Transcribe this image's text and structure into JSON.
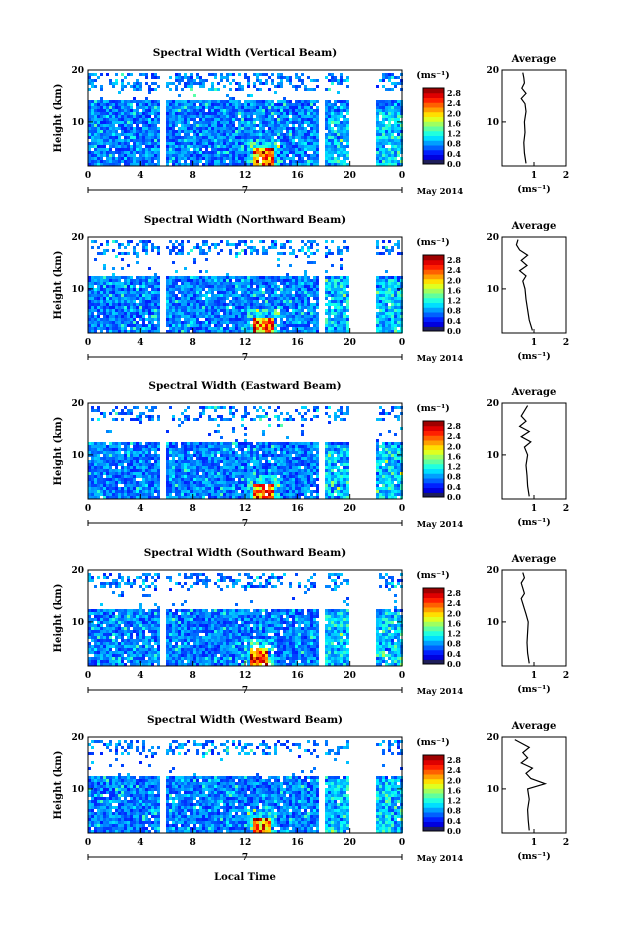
{
  "figure": {
    "date_label": "May 2014",
    "day_label": "7",
    "bottom_xlabel": "Local Time"
  },
  "chart_data": [
    {
      "type": "heatmap",
      "title": "Spectral Width (Vertical Beam)",
      "ylabel": "Height (km)",
      "xlabel": "",
      "x_ticks": [
        "0",
        "4",
        "8",
        "12",
        "16",
        "20",
        "0"
      ],
      "y_ticks": [
        "20",
        "10"
      ],
      "xlim": [
        0,
        24
      ],
      "ylim": [
        1.5,
        20
      ],
      "gaps_hours": [
        [
          5.5,
          5.8
        ],
        [
          17.6,
          17.9
        ],
        [
          19.8,
          21.8
        ]
      ],
      "upper_gap_km": [
        14.3,
        16.2
      ],
      "data_top_km": 19.8,
      "hotspot": {
        "hour": 13.3,
        "km": [
          2,
          5
        ]
      },
      "colorbar": {
        "unit": "(ms⁻¹)",
        "ticks": [
          "2.8",
          "2.4",
          "2.0",
          "1.6",
          "1.2",
          "0.8",
          "0.4",
          "0.0"
        ],
        "range": [
          0.0,
          3.0
        ]
      },
      "average": {
        "title": "Average",
        "xlabel": "(ms⁻¹)",
        "x_ticks": [
          "1",
          "2"
        ],
        "y_ticks": [
          "20",
          "10"
        ],
        "xlim": [
          0,
          2
        ],
        "ylim": [
          1.5,
          20
        ],
        "heights": [
          2.0,
          4.0,
          6.0,
          8.0,
          10.0,
          12.0,
          13.5,
          14.5,
          15.5,
          16.5,
          17.5,
          18.5,
          19.5
        ],
        "values": [
          0.75,
          0.7,
          0.68,
          0.72,
          0.7,
          0.75,
          0.72,
          0.6,
          0.75,
          0.62,
          0.7,
          0.68,
          0.65
        ]
      }
    },
    {
      "type": "heatmap",
      "title": "Spectral Width (Northward Beam)",
      "ylabel": "Height (km)",
      "xlabel": "",
      "x_ticks": [
        "0",
        "4",
        "8",
        "12",
        "16",
        "20",
        "0"
      ],
      "y_ticks": [
        "20",
        "10"
      ],
      "xlim": [
        0,
        24
      ],
      "ylim": [
        1.5,
        20
      ],
      "gaps_hours": [
        [
          5.5,
          5.8
        ],
        [
          17.6,
          17.9
        ],
        [
          19.8,
          21.8
        ]
      ],
      "upper_gap_km": [
        12.8,
        17.0
      ],
      "data_top_km": 19.5,
      "hotspot": {
        "hour": 13.3,
        "km": [
          2,
          4.5
        ]
      },
      "colorbar": {
        "unit": "(ms⁻¹)",
        "ticks": [
          "2.8",
          "2.4",
          "2.0",
          "1.6",
          "1.2",
          "0.8",
          "0.4",
          "0.0"
        ],
        "range": [
          0.0,
          3.0
        ]
      },
      "average": {
        "title": "Average",
        "xlabel": "(ms⁻¹)",
        "x_ticks": [
          "1",
          "2"
        ],
        "y_ticks": [
          "20",
          "10"
        ],
        "xlim": [
          0,
          2
        ],
        "ylim": [
          1.5,
          20
        ],
        "heights": [
          2.0,
          4.0,
          6.0,
          8.0,
          10.0,
          11.5,
          12.5,
          13.5,
          14.5,
          15.5,
          16.5,
          17.5,
          18.5,
          19.5
        ],
        "values": [
          0.95,
          0.85,
          0.8,
          0.75,
          0.72,
          0.65,
          0.75,
          0.55,
          0.78,
          0.6,
          0.8,
          0.55,
          0.45,
          0.5
        ]
      }
    },
    {
      "type": "heatmap",
      "title": "Spectral Width (Eastward Beam)",
      "ylabel": "Height (km)",
      "xlabel": "",
      "x_ticks": [
        "0",
        "4",
        "8",
        "12",
        "16",
        "20",
        "0"
      ],
      "y_ticks": [
        "20",
        "10"
      ],
      "xlim": [
        0,
        24
      ],
      "ylim": [
        1.5,
        20
      ],
      "gaps_hours": [
        [
          5.5,
          5.8
        ],
        [
          17.6,
          17.9
        ],
        [
          19.8,
          21.8
        ]
      ],
      "upper_gap_km": [
        12.8,
        17.0
      ],
      "data_top_km": 19.5,
      "hotspot": {
        "hour": 13.3,
        "km": [
          2,
          4.5
        ]
      },
      "colorbar": {
        "unit": "(ms⁻¹)",
        "ticks": [
          "2.8",
          "2.4",
          "2.0",
          "1.6",
          "1.2",
          "0.8",
          "0.4",
          "0.0"
        ],
        "range": [
          0.0,
          3.0
        ]
      },
      "average": {
        "title": "Average",
        "xlabel": "(ms⁻¹)",
        "x_ticks": [
          "1",
          "2"
        ],
        "y_ticks": [
          "20",
          "10"
        ],
        "xlim": [
          0,
          2
        ],
        "ylim": [
          1.5,
          20
        ],
        "heights": [
          2.0,
          4.0,
          6.0,
          8.0,
          10.0,
          11.5,
          12.5,
          13.5,
          14.5,
          15.5,
          16.5,
          17.5,
          18.5,
          19.5
        ],
        "values": [
          0.85,
          0.8,
          0.78,
          0.75,
          0.8,
          0.7,
          0.9,
          0.6,
          0.85,
          0.55,
          0.75,
          0.6,
          0.7,
          0.8
        ]
      }
    },
    {
      "type": "heatmap",
      "title": "Spectral Width (Southward Beam)",
      "ylabel": "Height (km)",
      "xlabel": "",
      "x_ticks": [
        "0",
        "4",
        "8",
        "12",
        "16",
        "20",
        "0"
      ],
      "y_ticks": [
        "20",
        "10"
      ],
      "xlim": [
        0,
        24
      ],
      "ylim": [
        1.5,
        20
      ],
      "gaps_hours": [
        [
          5.5,
          5.8
        ],
        [
          17.6,
          17.9
        ],
        [
          19.8,
          21.8
        ]
      ],
      "upper_gap_km": [
        12.8,
        17.0
      ],
      "data_top_km": 19.5,
      "hotspot": {
        "hour": 13.0,
        "km": [
          2,
          5
        ]
      },
      "colorbar": {
        "unit": "(ms⁻¹)",
        "ticks": [
          "2.8",
          "2.4",
          "2.0",
          "1.6",
          "1.2",
          "0.8",
          "0.4",
          "0.0"
        ],
        "range": [
          0.0,
          3.0
        ]
      },
      "average": {
        "title": "Average",
        "xlabel": "(ms⁻¹)",
        "x_ticks": [
          "1",
          "2"
        ],
        "y_ticks": [
          "20",
          "10"
        ],
        "xlim": [
          0,
          2
        ],
        "ylim": [
          1.5,
          20
        ],
        "heights": [
          2.0,
          4.0,
          6.0,
          8.0,
          10.0,
          11.5,
          12.5,
          13.5,
          14.5,
          15.5,
          16.5,
          17.5,
          18.5,
          19.5
        ],
        "values": [
          0.85,
          0.8,
          0.78,
          0.8,
          0.82,
          0.75,
          0.7,
          0.65,
          0.6,
          0.7,
          0.65,
          0.6,
          0.7,
          0.65
        ]
      }
    },
    {
      "type": "heatmap",
      "title": "Spectral Width (Westward Beam)",
      "ylabel": "Height (km)",
      "xlabel": "Local Time",
      "x_ticks": [
        "0",
        "4",
        "8",
        "12",
        "16",
        "20",
        "0"
      ],
      "y_ticks": [
        "20",
        "10"
      ],
      "xlim": [
        0,
        24
      ],
      "ylim": [
        1.5,
        20
      ],
      "gaps_hours": [
        [
          5.5,
          5.8
        ],
        [
          17.6,
          17.9
        ],
        [
          19.8,
          21.8
        ]
      ],
      "upper_gap_km": [
        12.8,
        17.0
      ],
      "data_top_km": 19.5,
      "hotspot": {
        "hour": 13.2,
        "km": [
          2,
          4.5
        ]
      },
      "colorbar": {
        "unit": "(ms⁻¹)",
        "ticks": [
          "2.8",
          "2.4",
          "2.0",
          "1.6",
          "1.2",
          "0.8",
          "0.4",
          "0.0"
        ],
        "range": [
          0.0,
          3.0
        ]
      },
      "average": {
        "title": "Average",
        "xlabel": "(ms⁻¹)",
        "x_ticks": [
          "1",
          "2"
        ],
        "y_ticks": [
          "20",
          "10"
        ],
        "xlim": [
          0,
          2
        ],
        "ylim": [
          1.5,
          20
        ],
        "heights": [
          2.0,
          4.0,
          6.0,
          8.0,
          10.0,
          11.0,
          12.0,
          13.0,
          14.0,
          15.0,
          16.0,
          17.0,
          18.0,
          19.5
        ],
        "values": [
          0.85,
          0.82,
          0.8,
          0.85,
          0.8,
          1.35,
          0.9,
          0.75,
          0.95,
          0.6,
          0.8,
          0.65,
          0.85,
          0.4
        ]
      }
    }
  ]
}
